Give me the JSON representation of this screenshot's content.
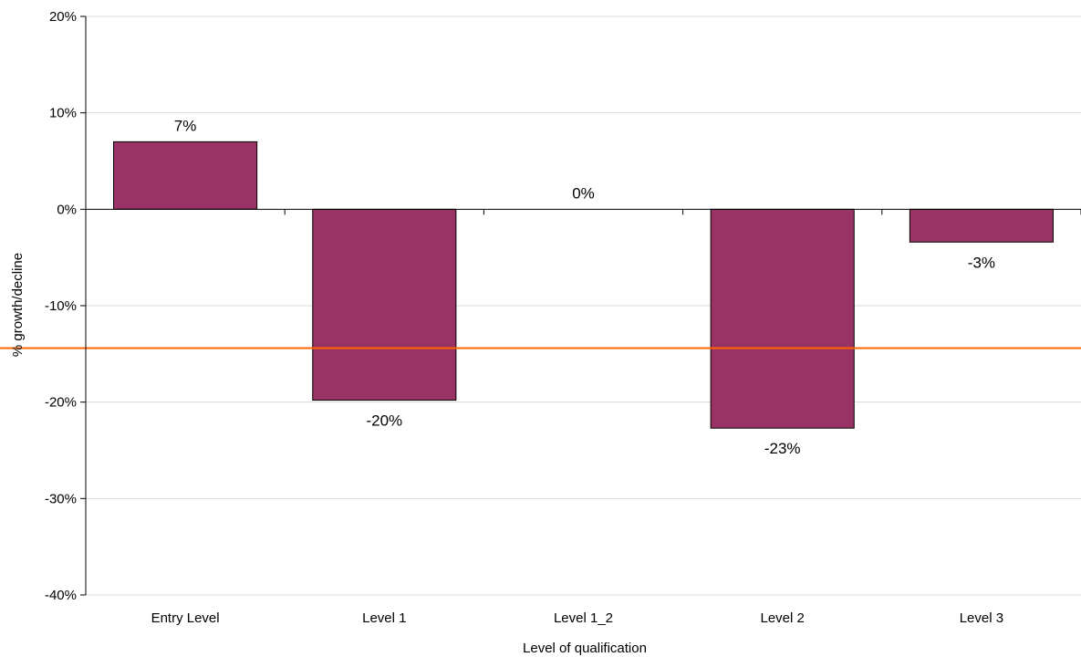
{
  "chart_data": {
    "type": "bar",
    "title": "",
    "xlabel": "Level of qualification",
    "ylabel": "% growth/decline",
    "categories": [
      "Entry Level",
      "Level 1",
      "Level 1_2",
      "Level 2",
      "Level 3"
    ],
    "values": [
      7,
      -19.8,
      0,
      -22.7,
      -3.4
    ],
    "data_labels": [
      "7%",
      "-20%",
      "0%",
      "-23%",
      "-3%"
    ],
    "ylim": [
      -40,
      20
    ],
    "yticks": [
      20,
      10,
      0,
      -10,
      -20,
      -30,
      -40
    ],
    "ytick_labels": [
      "20%",
      "10%",
      "0%",
      "-10%",
      "-20%",
      "-30%",
      "-40%"
    ],
    "reference_line": {
      "value": -14.4
    },
    "grid": true,
    "legend": "none",
    "colors": {
      "bar": "#993366",
      "bar_border": "#000000",
      "reference_line": "#ff6600",
      "grid": "#d9d9d9"
    }
  }
}
